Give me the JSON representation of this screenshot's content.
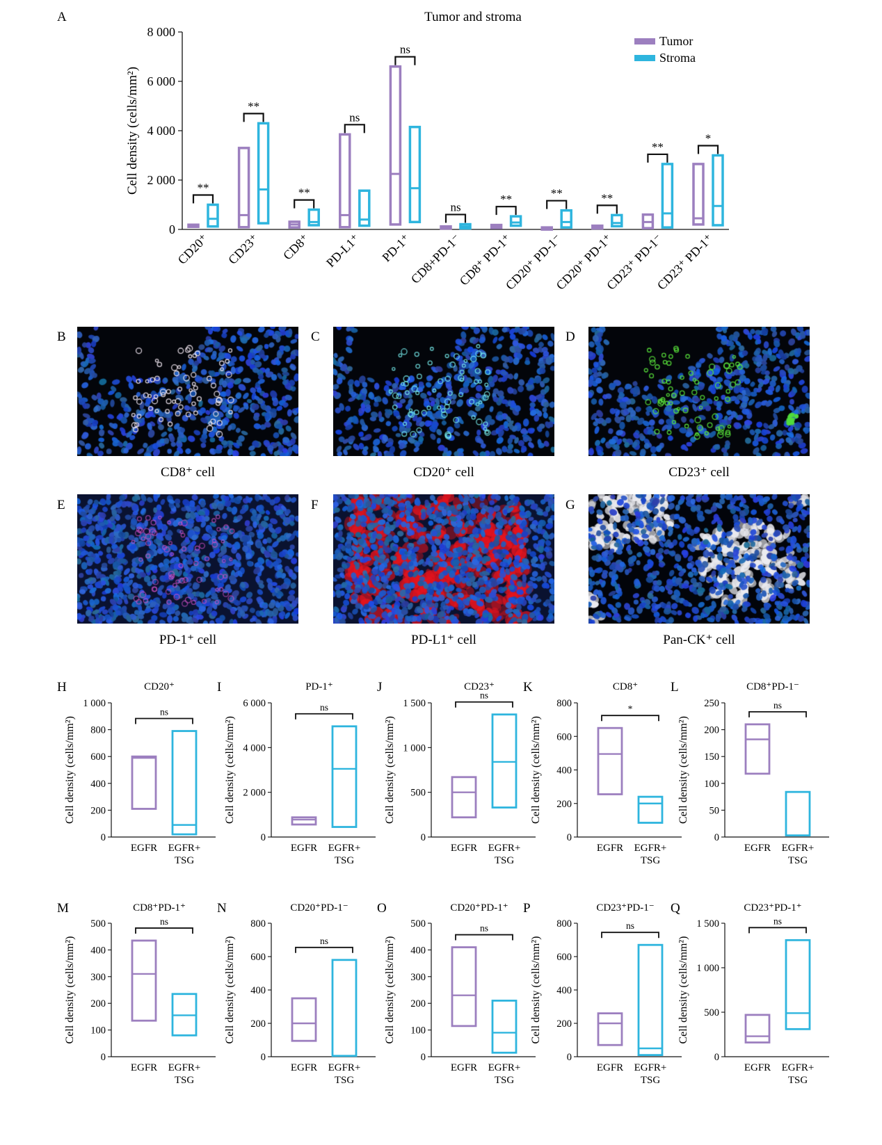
{
  "colors": {
    "tumor": "#9c7fbf",
    "stroma": "#2eb5de",
    "egfr": "#9c7fbf",
    "egfr_tsg": "#2eb5de"
  },
  "chart_data": [
    {
      "panel": "A",
      "type": "box",
      "title": "Tumor and stroma",
      "ylabel": "Cell density (cells/mm²)",
      "ylim": [
        0,
        8000
      ],
      "yticks": [
        "0",
        "2 000",
        "4 000",
        "6 000",
        "8 000"
      ],
      "legend": {
        "placement": "top-right"
      },
      "categories": [
        "CD20⁺",
        "CD23⁺",
        "CD8⁺",
        "PD-L1⁺",
        "PD-1⁺",
        "CD8+PD-1⁻",
        "CD8⁺ PD-1⁺",
        "CD20⁺ PD-1⁻",
        "CD20⁺ PD-1⁺",
        "CD23⁺ PD-1⁻",
        "CD23⁺ PD-1⁺"
      ],
      "series": [
        {
          "name": "Tumor",
          "boxes": [
            {
              "low": 110,
              "mid": 150,
              "high": 190
            },
            {
              "low": 90,
              "mid": 580,
              "high": 3300
            },
            {
              "low": 80,
              "mid": 200,
              "high": 310
            },
            {
              "low": 90,
              "mid": 580,
              "high": 3850
            },
            {
              "low": 200,
              "mid": 2250,
              "high": 6600
            },
            {
              "low": 50,
              "mid": 90,
              "high": 120
            },
            {
              "low": 60,
              "mid": 120,
              "high": 180
            },
            {
              "low": 20,
              "mid": 50,
              "high": 80
            },
            {
              "low": 40,
              "mid": 90,
              "high": 150
            },
            {
              "low": 50,
              "mid": 300,
              "high": 600
            },
            {
              "low": 200,
              "mid": 450,
              "high": 2650
            }
          ]
        },
        {
          "name": "Stroma",
          "boxes": [
            {
              "low": 120,
              "mid": 430,
              "high": 1000
            },
            {
              "low": 250,
              "mid": 1620,
              "high": 4300
            },
            {
              "low": 170,
              "mid": 300,
              "high": 800
            },
            {
              "low": 150,
              "mid": 400,
              "high": 1570
            },
            {
              "low": 300,
              "mid": 1670,
              "high": 4150
            },
            {
              "low": 40,
              "mid": 120,
              "high": 210
            },
            {
              "low": 150,
              "mid": 280,
              "high": 530
            },
            {
              "low": 80,
              "mid": 300,
              "high": 770
            },
            {
              "low": 130,
              "mid": 260,
              "high": 580
            },
            {
              "low": 80,
              "mid": 650,
              "high": 2650
            },
            {
              "low": 170,
              "mid": 950,
              "high": 3000
            }
          ]
        }
      ],
      "significance": [
        "**",
        "**",
        "**",
        "ns",
        "ns",
        "ns",
        "**",
        "**",
        "**",
        "**",
        "*"
      ]
    },
    {
      "panel": "H",
      "type": "box",
      "title": "CD20⁺",
      "ylabel": "Cell density (cells/mm²)",
      "ylim": [
        0,
        1000
      ],
      "yticks": [
        "0",
        "200",
        "400",
        "600",
        "800",
        "1 000"
      ],
      "categories": [
        "EGFR",
        "EGFR+ TSG"
      ],
      "boxes": [
        {
          "low": 210,
          "mid": 590,
          "high": 600
        },
        {
          "low": 20,
          "mid": 90,
          "high": 790
        }
      ],
      "significance": "ns"
    },
    {
      "panel": "I",
      "type": "box",
      "title": "PD-1⁺",
      "ylabel": "Cell density (cells/mm²)",
      "ylim": [
        0,
        6000
      ],
      "yticks": [
        "0",
        "2 000",
        "4 000",
        "6 000"
      ],
      "categories": [
        "EGFR",
        "EGFR+ TSG"
      ],
      "boxes": [
        {
          "low": 560,
          "mid": 780,
          "high": 880
        },
        {
          "low": 450,
          "mid": 3050,
          "high": 4950
        }
      ],
      "significance": "ns"
    },
    {
      "panel": "J",
      "type": "box",
      "title": "CD23⁺",
      "ylabel": "Cell density (cells/mm²)",
      "ylim": [
        0,
        1500
      ],
      "yticks": [
        "0",
        "500",
        "1 000",
        "1 500"
      ],
      "categories": [
        "EGFR",
        "EGFR+ TSG"
      ],
      "boxes": [
        {
          "low": 220,
          "mid": 500,
          "high": 670
        },
        {
          "low": 330,
          "mid": 840,
          "high": 1370
        }
      ],
      "significance": "ns"
    },
    {
      "panel": "K",
      "type": "box",
      "title": "CD8⁺",
      "ylabel": "Cell density (cells/mm²)",
      "ylim": [
        0,
        800
      ],
      "yticks": [
        "0",
        "200",
        "400",
        "600",
        "800"
      ],
      "categories": [
        "EGFR",
        "EGFR+ TSG"
      ],
      "boxes": [
        {
          "low": 255,
          "mid": 495,
          "high": 650
        },
        {
          "low": 85,
          "mid": 200,
          "high": 240
        }
      ],
      "significance": "*"
    },
    {
      "panel": "L",
      "type": "box",
      "title": "CD8⁺PD-1⁻",
      "ylabel": "Cell density (cells/mm²)",
      "ylim": [
        0,
        250
      ],
      "yticks": [
        "0",
        "50",
        "100",
        "150",
        "200",
        "250"
      ],
      "categories": [
        "EGFR",
        "EGFR+ TSG"
      ],
      "boxes": [
        {
          "low": 118,
          "mid": 182,
          "high": 210
        },
        {
          "low": 3,
          "mid": 3,
          "high": 84
        }
      ],
      "significance": "ns"
    },
    {
      "panel": "M",
      "type": "box",
      "title": "CD8⁺PD-1⁺",
      "ylabel": "Cell density (cells/mm²)",
      "ylim": [
        0,
        500
      ],
      "yticks": [
        "0",
        "100",
        "200",
        "300",
        "400",
        "500"
      ],
      "categories": [
        "EGFR",
        "EGFR+ TSG"
      ],
      "boxes": [
        {
          "low": 135,
          "mid": 310,
          "high": 435
        },
        {
          "low": 80,
          "mid": 155,
          "high": 235
        }
      ],
      "significance": "ns"
    },
    {
      "panel": "N",
      "type": "box",
      "title": "CD20⁺PD-1⁻",
      "ylabel": "Cell density (cells/mm²)",
      "ylim": [
        0,
        800
      ],
      "yticks": [
        "0",
        "200",
        "400",
        "600",
        "800"
      ],
      "categories": [
        "EGFR",
        "EGFR+ TSG"
      ],
      "boxes": [
        {
          "low": 95,
          "mid": 200,
          "high": 350
        },
        {
          "low": 5,
          "mid": 5,
          "high": 580
        }
      ],
      "significance": "ns"
    },
    {
      "panel": "O",
      "type": "box",
      "title": "CD20⁺PD-1⁺",
      "ylabel": "Cell density (cells/mm²)",
      "ylim": [
        0,
        500
      ],
      "yticks": [
        "0",
        "100",
        "200",
        "300",
        "400",
        "500"
      ],
      "categories": [
        "EGFR",
        "EGFR+ TSG"
      ],
      "boxes": [
        {
          "low": 115,
          "mid": 230,
          "high": 410
        },
        {
          "low": 15,
          "mid": 90,
          "high": 210
        }
      ],
      "significance": "ns"
    },
    {
      "panel": "P",
      "type": "box",
      "title": "CD23⁺PD-1⁻",
      "ylabel": "Cell density (cells/mm²)",
      "ylim": [
        0,
        800
      ],
      "yticks": [
        "0",
        "200",
        "400",
        "600",
        "800"
      ],
      "categories": [
        "EGFR",
        "EGFR+ TSG"
      ],
      "boxes": [
        {
          "low": 70,
          "mid": 200,
          "high": 260
        },
        {
          "low": 10,
          "mid": 50,
          "high": 670
        }
      ],
      "significance": "ns"
    },
    {
      "panel": "Q",
      "type": "box",
      "title": "CD23⁺PD-1⁺",
      "ylabel": "Cell density (cells/mm²)",
      "ylim": [
        0,
        1500
      ],
      "yticks": [
        "0",
        "500",
        "1 000",
        "1 500"
      ],
      "categories": [
        "EGFR",
        "EGFR+ TSG"
      ],
      "boxes": [
        {
          "low": 160,
          "mid": 230,
          "high": 470
        },
        {
          "low": 310,
          "mid": 490,
          "high": 1310
        }
      ],
      "significance": "ns"
    }
  ],
  "images": [
    {
      "panel": "B",
      "caption": "CD8⁺ cell"
    },
    {
      "panel": "C",
      "caption": "CD20⁺ cell"
    },
    {
      "panel": "D",
      "caption": "CD23⁺ cell"
    },
    {
      "panel": "E",
      "caption": "PD-1⁺ cell"
    },
    {
      "panel": "F",
      "caption": "PD-L1⁺ cell"
    },
    {
      "panel": "G",
      "caption": "Pan-CK⁺ cell"
    }
  ]
}
